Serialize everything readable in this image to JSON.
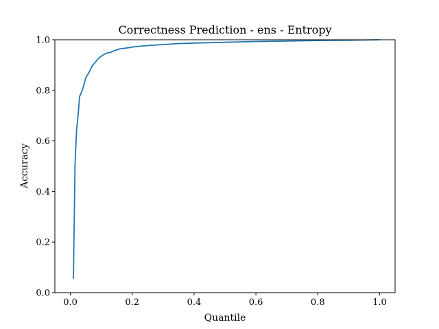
{
  "chart_data": {
    "type": "line",
    "title": "Correctness Prediction - ens - Entropy",
    "xlabel": "Quantile",
    "ylabel": "Accuracy",
    "xlim": [
      -0.05,
      1.05
    ],
    "ylim": [
      0.0,
      1.0
    ],
    "xticks": [
      0.0,
      0.2,
      0.4,
      0.6,
      0.8,
      1.0
    ],
    "xtick_labels": [
      "0.0",
      "0.2",
      "0.4",
      "0.6",
      "0.8",
      "1.0"
    ],
    "yticks": [
      0.0,
      0.2,
      0.4,
      0.6,
      0.8,
      1.0
    ],
    "ytick_labels": [
      "0.0",
      "0.2",
      "0.4",
      "0.6",
      "0.8",
      "1.0"
    ],
    "grid": false,
    "series": [
      {
        "color": "#1f77b4",
        "x": [
          0.01,
          0.015,
          0.02,
          0.025,
          0.03,
          0.04,
          0.05,
          0.06,
          0.07,
          0.08,
          0.09,
          0.1,
          0.11,
          0.12,
          0.13,
          0.14,
          0.15,
          0.16,
          0.18,
          0.2,
          0.22,
          0.25,
          0.3,
          0.35,
          0.4,
          0.5,
          0.6,
          0.7,
          0.8,
          0.9,
          1.0
        ],
        "y": [
          0.055,
          0.5,
          0.64,
          0.7,
          0.775,
          0.805,
          0.85,
          0.87,
          0.895,
          0.91,
          0.925,
          0.935,
          0.943,
          0.948,
          0.95,
          0.956,
          0.96,
          0.964,
          0.967,
          0.971,
          0.974,
          0.977,
          0.981,
          0.985,
          0.987,
          0.99,
          0.993,
          0.995,
          0.997,
          0.998,
          1.0
        ]
      }
    ]
  }
}
